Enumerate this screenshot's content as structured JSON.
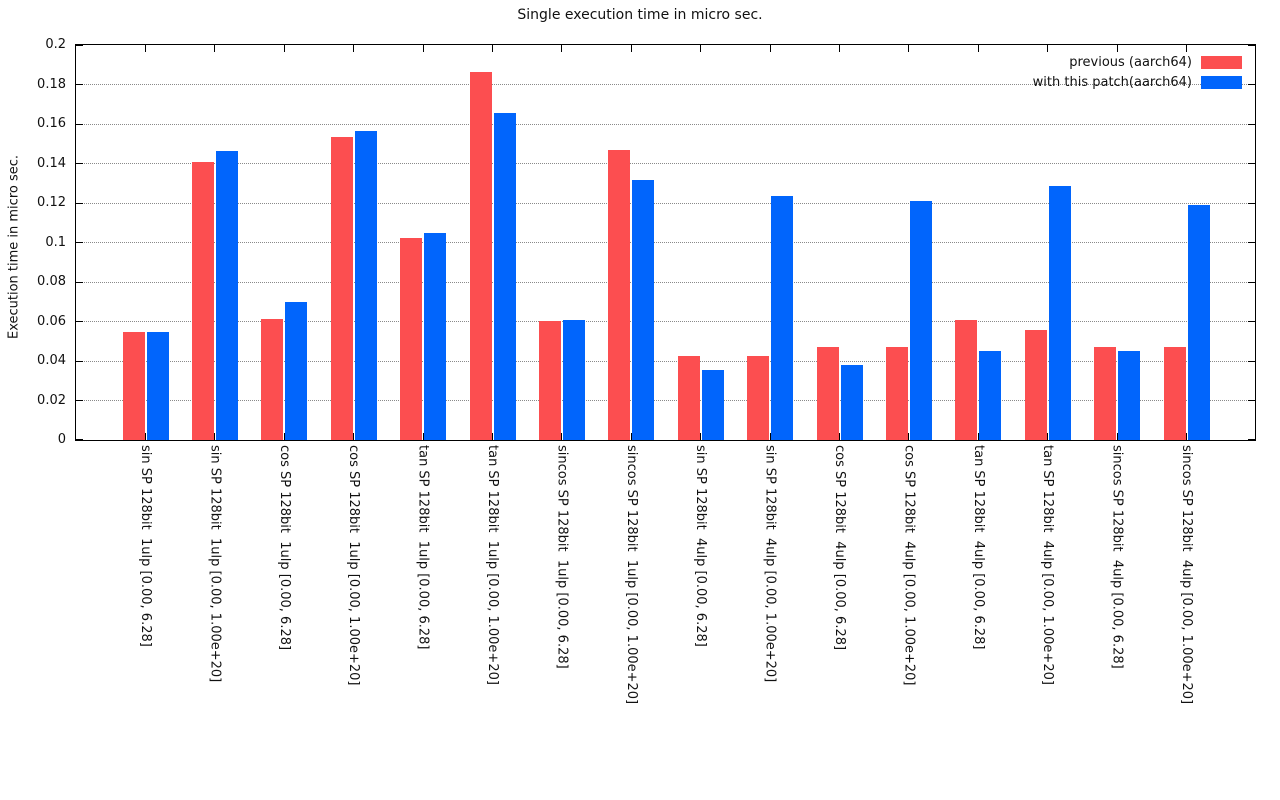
{
  "chart_data": {
    "type": "bar",
    "title": "Single execution time in micro sec.",
    "ylabel": "Execution time in micro sec.",
    "xlabel": "",
    "ylim": [
      0,
      0.2
    ],
    "ytick_step": 0.02,
    "ytick_labels": [
      "0",
      "0.02",
      "0.04",
      "0.06",
      "0.08",
      "0.1",
      "0.12",
      "0.14",
      "0.16",
      "0.18",
      "0.2"
    ],
    "grid": "horizontal dotted lines at each y tick",
    "legend_position": "top-right inside plot, right-aligned labels with color swatches",
    "categories": [
      "sin SP 128bit  1ulp [0.00, 6.28]",
      "sin SP 128bit  1ulp [0.00, 1.00e+20]",
      "cos SP 128bit  1ulp [0.00, 6.28]",
      "cos SP 128bit  1ulp [0.00, 1.00e+20]",
      "tan SP 128bit  1ulp [0.00, 6.28]",
      "tan SP 128bit  1ulp [0.00, 1.00e+20]",
      "sincos SP 128bit  1ulp [0.00, 6.28]",
      "sincos SP 128bit  1ulp [0.00, 1.00e+20]",
      "sin SP 128bit  4ulp [0.00, 6.28]",
      "sin SP 128bit  4ulp [0.00, 1.00e+20]",
      "cos SP 128bit  4ulp [0.00, 6.28]",
      "cos SP 128bit  4ulp [0.00, 1.00e+20]",
      "tan SP 128bit  4ulp [0.00, 6.28]",
      "tan SP 128bit  4ulp [0.00, 1.00e+20]",
      "sincos SP 128bit  4ulp [0.00, 6.28]",
      "sincos SP 128bit  4ulp [0.00, 1.00e+20]"
    ],
    "series": [
      {
        "name": "previous (aarch64)",
        "color": "#fc4e50",
        "values": [
          0.0545,
          0.141,
          0.0615,
          0.1535,
          0.1025,
          0.1865,
          0.0605,
          0.147,
          0.0425,
          0.0425,
          0.047,
          0.047,
          0.061,
          0.0555,
          0.047,
          0.047
        ]
      },
      {
        "name": "with this patch(aarch64)",
        "color": "#0165fc",
        "values": [
          0.0545,
          0.1465,
          0.07,
          0.1565,
          0.105,
          0.1655,
          0.061,
          0.1315,
          0.0355,
          0.1235,
          0.038,
          0.121,
          0.045,
          0.1285,
          0.045,
          0.119
        ]
      }
    ]
  }
}
